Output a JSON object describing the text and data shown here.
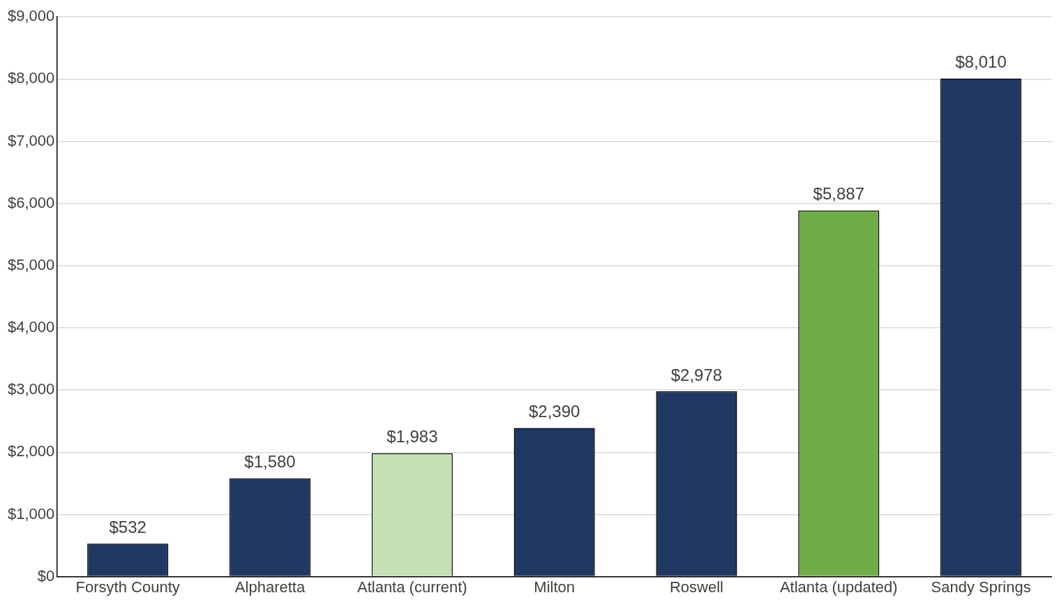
{
  "chart_data": {
    "type": "bar",
    "categories": [
      "Forsyth County",
      "Alpharetta",
      "Atlanta (current)",
      "Milton",
      "Roswell",
      "Atlanta (updated)",
      "Sandy Springs"
    ],
    "values": [
      532,
      1580,
      1983,
      2390,
      2978,
      5887,
      8010
    ],
    "colors": [
      "#203864",
      "#203864",
      "#c5e0b4",
      "#203864",
      "#203864",
      "#70ad47",
      "#203864"
    ],
    "ylim": [
      0,
      9000
    ],
    "yticks": [
      {
        "value": 0,
        "label": "$0"
      },
      {
        "value": 1000,
        "label": "$1,000"
      },
      {
        "value": 2000,
        "label": "$2,000"
      },
      {
        "value": 3000,
        "label": "$3,000"
      },
      {
        "value": 4000,
        "label": "$4,000"
      },
      {
        "value": 5000,
        "label": "$5,000"
      },
      {
        "value": 6000,
        "label": "$6,000"
      },
      {
        "value": 7000,
        "label": "$7,000"
      },
      {
        "value": 8000,
        "label": "$8,000"
      },
      {
        "value": 9000,
        "label": "$9,000"
      }
    ],
    "value_labels": [
      "$532",
      "$1,580",
      "$1,983",
      "$2,390",
      "$2,978",
      "$5,887",
      "$8,010"
    ],
    "grid": "y",
    "legend": false
  }
}
